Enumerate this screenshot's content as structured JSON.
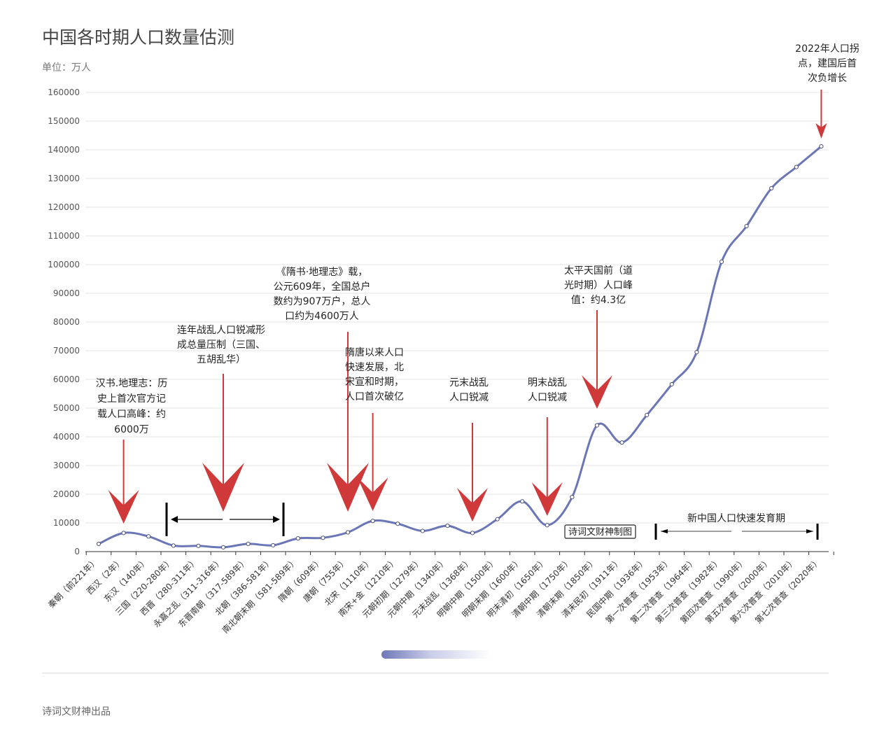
{
  "header": {
    "title": "中国各时期人口数量估测",
    "unit": "单位：万人"
  },
  "footer": {
    "credit": "诗词文财神出品"
  },
  "colors": {
    "line": "#6a76b5",
    "arrow": "#d0393a",
    "grid": "#e6e6e6"
  },
  "chart_data": {
    "type": "line",
    "title": "中国各时期人口数量估测",
    "ylabel": "单位：万人",
    "ylim": [
      0,
      160000
    ],
    "yticks": [
      "0",
      "10000",
      "20000",
      "30000",
      "40000",
      "50000",
      "60000",
      "70000",
      "80000",
      "90000",
      "100000",
      "110000",
      "120000",
      "130000",
      "140000",
      "150000",
      "160000"
    ],
    "grid": true,
    "categories": [
      "秦朝（前221年）",
      "西汉（2年）",
      "东汉（140年）",
      "三国（220-280年）",
      "西晋（280-311年）",
      "永嘉之乱（311-316年）",
      "东晋南朝（317-589年）",
      "北朝（386-581年）",
      "南北朝末期（581-589年）",
      "隋朝（609年）",
      "唐朝（755年）",
      "北宋（1110年）",
      "南宋+金（1210年）",
      "元朝初期（1279年）",
      "元朝中期（1340年）",
      "元末战乱（1368年）",
      "明朝中期（1500年）",
      "明朝末期（1600年）",
      "明末清初（1650年）",
      "清朝中期（1750年）",
      "清朝末期（1850年）",
      "清末民初（1911年）",
      "民国中期（1936年）",
      "第一次普查（1953年）",
      "第二次普查（1964年）",
      "第三次普查（1982年）",
      "第四次普查（1990年）",
      "第五次普查（2000年）",
      "第六次普查（2010年）",
      "第七次普查（2020年）"
    ],
    "values": [
      2700,
      6500,
      5300,
      2100,
      2000,
      1500,
      2700,
      2200,
      4600,
      4800,
      6700,
      10700,
      9700,
      7200,
      9000,
      6500,
      11300,
      17500,
      9200,
      19000,
      44000,
      38000,
      47600,
      58300,
      69500,
      101000,
      113400,
      126600,
      134000,
      141200
    ],
    "annotations": [
      {
        "text_lines": [
          "汉书.地理志：历",
          "史上首次官方记",
          "载人口高峰：约",
          "6000万"
        ],
        "arrow_at": "西汉（2年）"
      },
      {
        "text_lines": [
          "连年战乱人口锐减形",
          "成总量压制（三国、",
          "五胡乱华）"
        ],
        "arrow_at": "永嘉之乱（311-316年）"
      },
      {
        "text_lines": [
          "《隋书·地理志》载，",
          "公元609年，全国总户",
          "数约为907万户，总人",
          "口约为4600万人"
        ],
        "arrow_at": "唐朝（755年）"
      },
      {
        "text_lines": [
          "隋唐以来人口",
          "快速发展，北",
          "宋宣和时期，",
          "人口首次破亿"
        ],
        "arrow_at": "北宋（1110年）"
      },
      {
        "text_lines": [
          "元末战乱",
          "人口锐减"
        ],
        "arrow_at": "元末战乱（1368年）"
      },
      {
        "text_lines": [
          "明末战乱",
          "人口锐减"
        ],
        "arrow_at": "明末清初（1650年）"
      },
      {
        "text_lines": [
          "太平天国前（道",
          "光时期）人口峰",
          "值：约4.3亿"
        ],
        "arrow_at": "清朝末期（1850年）"
      },
      {
        "text_lines": [
          "2022年人口拐",
          "点，建国后首",
          "次负增长"
        ],
        "arrow_at": "第七次普查（2020年）"
      }
    ],
    "period_label": "新中国人口快速发育期",
    "watermark_box": "诗词文财神制图"
  }
}
